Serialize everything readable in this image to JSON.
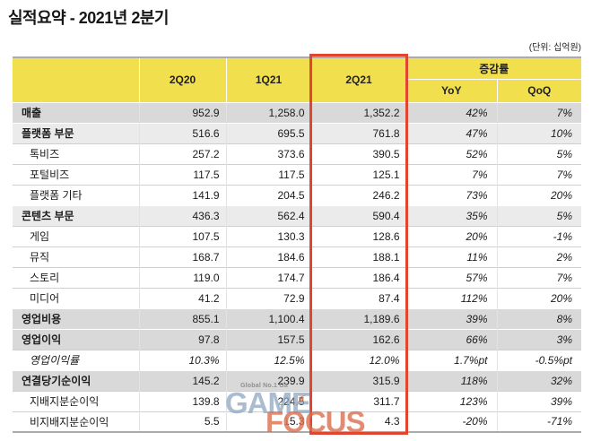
{
  "page": {
    "title": "실적요약 - 2021년 2분기",
    "unit_note": "(단위: 십억원)"
  },
  "colors": {
    "header_yellow": "#F2DF4E",
    "section_row_dark": "#D9D9D9",
    "section_row_light": "#EBEBEB",
    "highlight_red": "#E0452F",
    "watermark_blue": "#8EA7C0",
    "watermark_orange": "#DB6E4D"
  },
  "table": {
    "columns": [
      "2Q20",
      "1Q21",
      "2Q21"
    ],
    "highlighted_column": "2Q21",
    "change_group_label": "증감률",
    "change_columns": [
      "YoY",
      "QoQ"
    ],
    "rows": [
      {
        "label": "매출",
        "style": "section-dark",
        "values": [
          "952.9",
          "1,258.0",
          "1,352.2",
          "42%",
          "7%"
        ]
      },
      {
        "label": "플랫폼 부문",
        "style": "section-light",
        "values": [
          "516.6",
          "695.5",
          "761.8",
          "47%",
          "10%"
        ]
      },
      {
        "label": "톡비즈",
        "style": "sub",
        "values": [
          "257.2",
          "373.6",
          "390.5",
          "52%",
          "5%"
        ]
      },
      {
        "label": "포털비즈",
        "style": "sub",
        "values": [
          "117.5",
          "117.5",
          "125.1",
          "7%",
          "7%"
        ]
      },
      {
        "label": "플랫폼 기타",
        "style": "sub",
        "values": [
          "141.9",
          "204.5",
          "246.2",
          "73%",
          "20%"
        ]
      },
      {
        "label": "콘텐츠 부문",
        "style": "section-light",
        "values": [
          "436.3",
          "562.4",
          "590.4",
          "35%",
          "5%"
        ]
      },
      {
        "label": "게임",
        "style": "sub",
        "values": [
          "107.5",
          "130.3",
          "128.6",
          "20%",
          "-1%"
        ]
      },
      {
        "label": "뮤직",
        "style": "sub",
        "values": [
          "168.7",
          "184.6",
          "188.1",
          "11%",
          "2%"
        ]
      },
      {
        "label": "스토리",
        "style": "sub",
        "values": [
          "119.0",
          "174.7",
          "186.4",
          "57%",
          "7%"
        ]
      },
      {
        "label": "미디어",
        "style": "sub",
        "values": [
          "41.2",
          "72.9",
          "87.4",
          "112%",
          "20%"
        ]
      },
      {
        "label": "영업비용",
        "style": "section-dark",
        "values": [
          "855.1",
          "1,100.4",
          "1,189.6",
          "39%",
          "8%"
        ]
      },
      {
        "label": "영업이익",
        "style": "section-dark",
        "values": [
          "97.8",
          "157.5",
          "162.6",
          "66%",
          "3%"
        ]
      },
      {
        "label": "영업이익률",
        "style": "sub-italic",
        "values": [
          "10.3%",
          "12.5%",
          "12.0%",
          "1.7%pt",
          "-0.5%pt"
        ]
      },
      {
        "label": "연결당기순이익",
        "style": "section-dark",
        "values": [
          "145.2",
          "239.9",
          "315.9",
          "118%",
          "32%"
        ]
      },
      {
        "label": "지배지분순이익",
        "style": "sub",
        "values": [
          "139.8",
          "224.5",
          "311.7",
          "123%",
          "39%"
        ]
      },
      {
        "label": "비지배지분순이익",
        "style": "sub",
        "values": [
          "5.5",
          "15.3",
          "4.3",
          "-20%",
          "-71%"
        ]
      }
    ]
  },
  "watermark": {
    "tagline": "Global No.1 Ga",
    "word1": "GAME",
    "word2": "FOCUS"
  }
}
